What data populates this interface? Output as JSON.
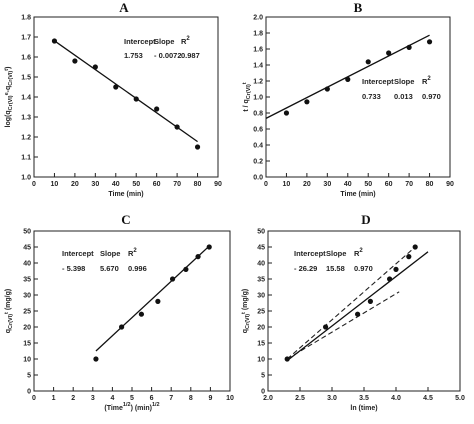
{
  "chart_data": [
    {
      "panel_label": "A",
      "type": "scatter",
      "xlabel": "Time (min)",
      "ylabel": "log(qCr(VI)e-qCr(VI)t)",
      "xlim": [
        0,
        90
      ],
      "ylim": [
        1.0,
        1.8
      ],
      "xticks": [
        0,
        10,
        20,
        30,
        40,
        50,
        60,
        70,
        80,
        90
      ],
      "yticks": [
        1.0,
        1.1,
        1.2,
        1.3,
        1.4,
        1.5,
        1.6,
        1.7,
        1.8
      ],
      "points": [
        [
          10,
          1.68
        ],
        [
          20,
          1.58
        ],
        [
          30,
          1.55
        ],
        [
          40,
          1.45
        ],
        [
          50,
          1.39
        ],
        [
          60,
          1.34
        ],
        [
          70,
          1.25
        ],
        [
          80,
          1.15
        ]
      ],
      "fit": {
        "x": [
          10,
          80
        ],
        "y": [
          1.681,
          1.177
        ]
      },
      "stats": {
        "headers": [
          "Intercept",
          "Slope",
          "R"
        ],
        "values": [
          "1.753",
          "- 0.0072",
          "0.987"
        ]
      }
    },
    {
      "panel_label": "B",
      "type": "scatter",
      "xlabel": "Time (min)",
      "ylabel": "t / qCr(VI)t",
      "xlim": [
        0,
        90
      ],
      "ylim": [
        0.0,
        2.0
      ],
      "xticks": [
        0,
        10,
        20,
        30,
        40,
        50,
        60,
        70,
        80,
        90
      ],
      "yticks": [
        0.0,
        0.2,
        0.4,
        0.6,
        0.8,
        1.0,
        1.2,
        1.4,
        1.6,
        1.8,
        2.0
      ],
      "points": [
        [
          10,
          0.8
        ],
        [
          20,
          0.94
        ],
        [
          30,
          1.1
        ],
        [
          40,
          1.22
        ],
        [
          50,
          1.44
        ],
        [
          60,
          1.55
        ],
        [
          70,
          1.62
        ],
        [
          80,
          1.69
        ]
      ],
      "fit": {
        "x": [
          0,
          80
        ],
        "y": [
          0.733,
          1.773
        ]
      },
      "stats": {
        "headers": [
          "Intercept",
          "Slope",
          "R"
        ],
        "values": [
          "0.733",
          "0.013",
          "0.970"
        ]
      }
    },
    {
      "panel_label": "C",
      "type": "scatter",
      "xlabel": "(Time  ) (min)",
      "ylabel": "qCr(VI)t (mg/g)",
      "xlim": [
        0,
        10
      ],
      "ylim": [
        0,
        50
      ],
      "xticks": [
        0,
        1,
        2,
        3,
        4,
        5,
        6,
        7,
        8,
        9,
        10
      ],
      "yticks": [
        0,
        5,
        10,
        15,
        20,
        25,
        30,
        35,
        40,
        45,
        50
      ],
      "points": [
        [
          3.16,
          10
        ],
        [
          4.47,
          20
        ],
        [
          5.48,
          24
        ],
        [
          6.32,
          28
        ],
        [
          7.07,
          35
        ],
        [
          7.75,
          38
        ],
        [
          8.37,
          42
        ],
        [
          8.94,
          45
        ]
      ],
      "fit": {
        "x": [
          3.16,
          8.94
        ],
        "y": [
          12.5,
          45.3
        ]
      },
      "stats": {
        "headers": [
          "Intercept",
          "Slope",
          "R"
        ],
        "values": [
          "- 5.398",
          "5.670",
          "0.996"
        ]
      }
    },
    {
      "panel_label": "D",
      "type": "scatter",
      "xlabel": "ln (time)",
      "ylabel": "qCr(VI)t (mg/g)",
      "xlim": [
        2.0,
        5.0
      ],
      "ylim": [
        0,
        50
      ],
      "xticks": [
        2.0,
        2.5,
        3.0,
        3.5,
        4.0,
        4.5,
        5.0
      ],
      "yticks": [
        0,
        5,
        10,
        15,
        20,
        25,
        30,
        35,
        40,
        45,
        50
      ],
      "points": [
        [
          2.3,
          10
        ],
        [
          2.9,
          20
        ],
        [
          3.4,
          24
        ],
        [
          3.6,
          28
        ],
        [
          3.9,
          35
        ],
        [
          4.0,
          38
        ],
        [
          4.2,
          42
        ],
        [
          4.3,
          45
        ]
      ],
      "fit": {
        "x": [
          2.3,
          4.5
        ],
        "y": [
          9.5,
          43.5
        ]
      },
      "dashed_lines": [
        {
          "x": [
            2.3,
            4.3
          ],
          "y": [
            10,
            45
          ]
        },
        {
          "x": [
            2.3,
            4.05
          ],
          "y": [
            10,
            31
          ]
        }
      ],
      "stats": {
        "headers": [
          "Intercept",
          "Slope",
          "R"
        ],
        "values": [
          "- 26.29",
          "15.58",
          "0.970"
        ]
      }
    }
  ]
}
